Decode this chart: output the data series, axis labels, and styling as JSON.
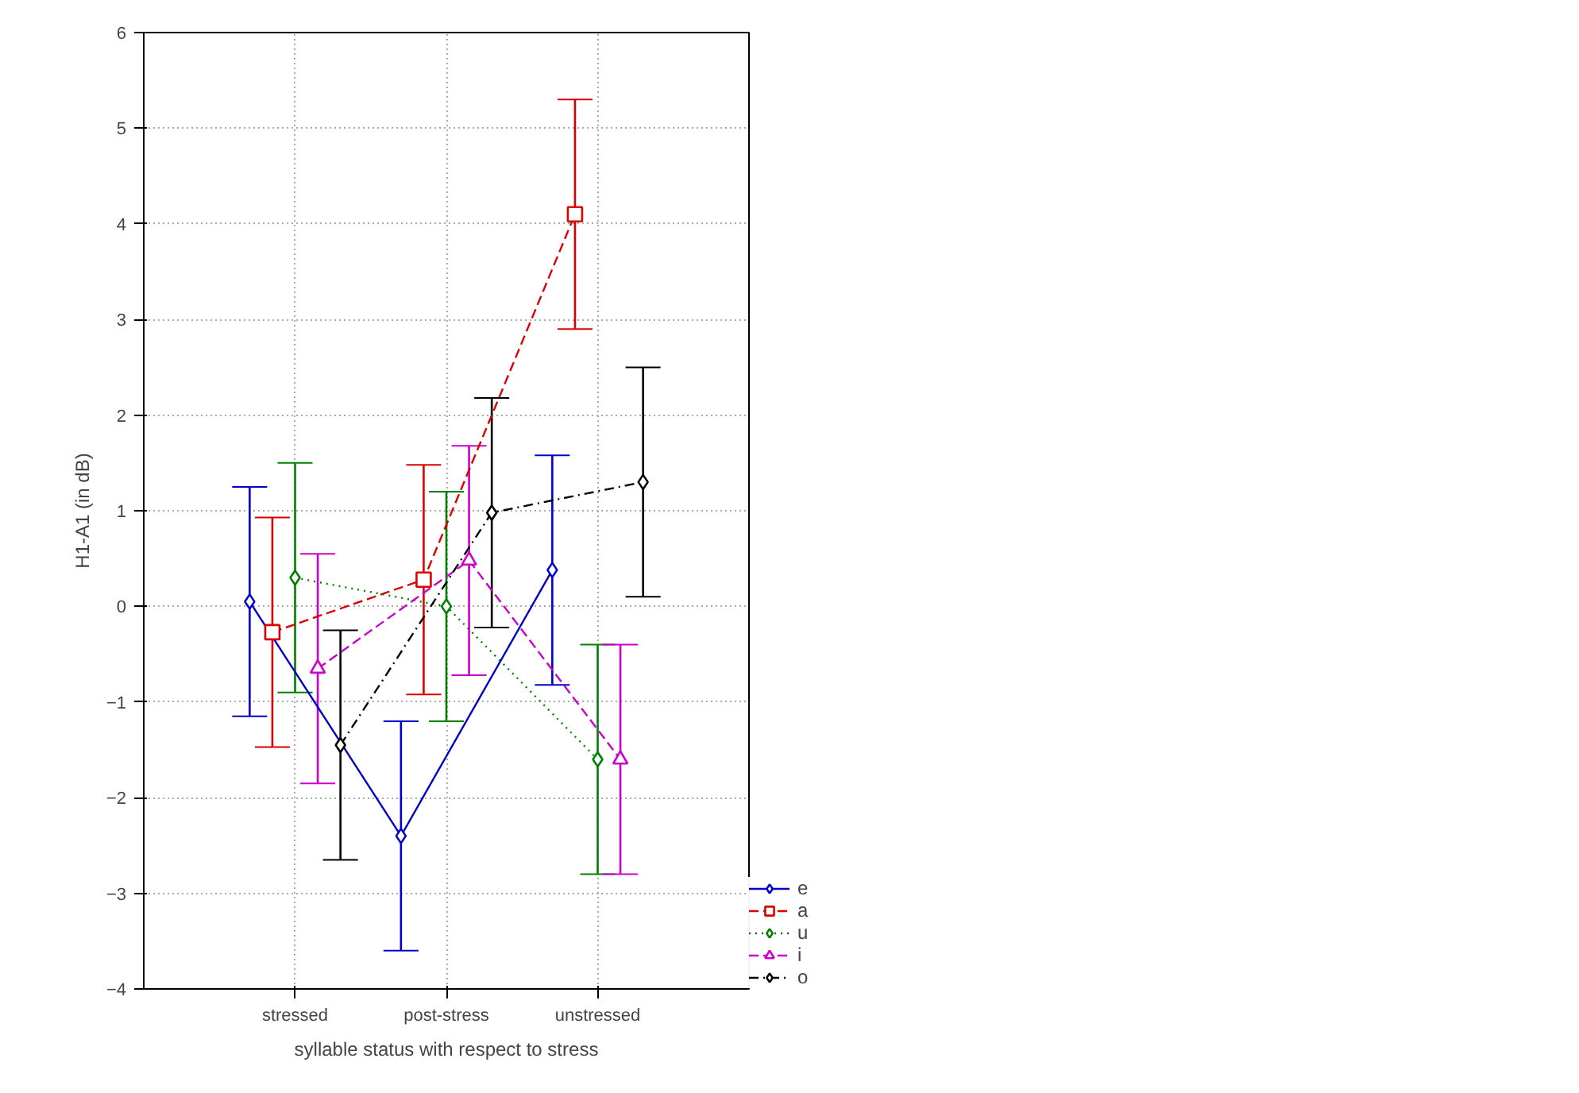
{
  "chart_data": {
    "type": "line",
    "xlabel": "syllable status with respect to stress",
    "ylabel": "H1-A1 (in dB)",
    "categories": [
      "stressed",
      "post-stress",
      "unstressed"
    ],
    "series": [
      {
        "name": "e",
        "color": "#0000cc",
        "values": [
          0.05,
          -2.4,
          0.38
        ],
        "errors": [
          1.2,
          1.2,
          1.2
        ],
        "marker": "diamond",
        "line_style": "solid"
      },
      {
        "name": "a",
        "color": "#dd0000",
        "values": [
          -0.27,
          0.28,
          4.1
        ],
        "errors": [
          1.2,
          1.2,
          1.2
        ],
        "marker": "square",
        "line_style": "dashed"
      },
      {
        "name": "u",
        "color": "#008000",
        "values": [
          0.3,
          0.0,
          -1.6
        ],
        "errors": [
          1.2,
          1.2,
          1.2
        ],
        "marker": "diamond",
        "line_style": "dotted"
      },
      {
        "name": "i",
        "color": "#cc00cc",
        "values": [
          -0.65,
          0.48,
          -1.6
        ],
        "errors": [
          1.2,
          1.2,
          1.2
        ],
        "marker": "triangle",
        "line_style": "dashed"
      },
      {
        "name": "o",
        "color": "#000000",
        "values": [
          -1.45,
          0.98,
          1.3
        ],
        "errors": [
          1.2,
          1.2,
          1.2
        ],
        "marker": "diamond",
        "line_style": "dashdot"
      }
    ],
    "ylim": [
      -4,
      6
    ],
    "yticks": [
      -4,
      -3,
      -2,
      -1,
      0,
      1,
      2,
      3,
      4,
      5,
      6
    ],
    "grid": true,
    "legend": "bottom right"
  }
}
